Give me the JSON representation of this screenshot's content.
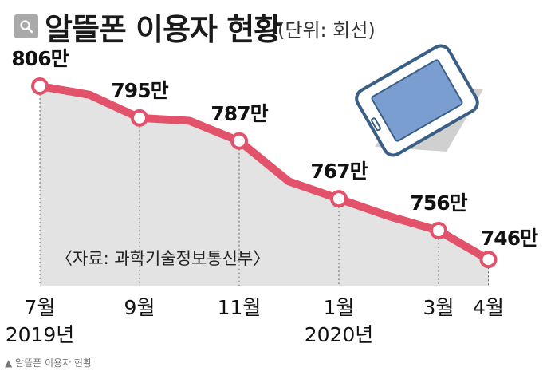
{
  "header": {
    "title": "알뜰폰 이용자 현황",
    "unit": "(단위: 회선)",
    "search_icon": "search-icon"
  },
  "source_note": "〈자료: 과학기술정보통신부〉",
  "caption": "▲ 알뜰폰 이용자 현황",
  "colors": {
    "line": "#e2536b",
    "area": "#e3e3e3",
    "phone_screen": "#7b9ed1",
    "phone_body": "#3a5f86"
  },
  "chart_data": {
    "type": "line",
    "title": "알뜰폰 이용자 현황",
    "unit": "(단위: 회선)",
    "x": [
      "2019-07",
      "2019-08",
      "2019-09",
      "2019-10",
      "2019-11",
      "2019-12",
      "2020-01",
      "2020-02",
      "2020-03",
      "2020-04"
    ],
    "values": [
      806,
      803,
      795,
      794,
      787,
      773,
      767,
      761,
      756,
      746
    ],
    "labeled_points": [
      {
        "x": "2019-07",
        "value": 806,
        "label": "806만"
      },
      {
        "x": "2019-09",
        "value": 795,
        "label": "795만"
      },
      {
        "x": "2019-11",
        "value": 787,
        "label": "787만"
      },
      {
        "x": "2020-01",
        "value": 767,
        "label": "767만"
      },
      {
        "x": "2020-03",
        "value": 756,
        "label": "756만"
      },
      {
        "x": "2020-04",
        "value": 746,
        "label": "746만"
      }
    ],
    "x_ticks": [
      {
        "x": "2019-07",
        "label": "7월",
        "year": "2019년"
      },
      {
        "x": "2019-09",
        "label": "9월",
        "year": ""
      },
      {
        "x": "2019-11",
        "label": "11월",
        "year": ""
      },
      {
        "x": "2020-01",
        "label": "1월",
        "year": "2020년"
      },
      {
        "x": "2020-03",
        "label": "3월",
        "year": ""
      },
      {
        "x": "2020-04",
        "label": "4월",
        "year": ""
      }
    ],
    "grid": false,
    "area_fill": true
  }
}
